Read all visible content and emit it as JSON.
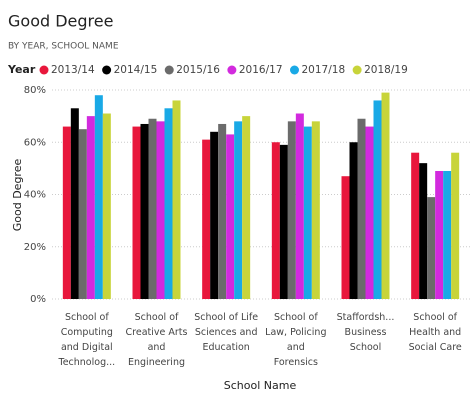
{
  "chart_data": {
    "type": "bar",
    "title": "Good Degree",
    "subtitle": "BY YEAR, SCHOOL NAME",
    "legend_title": "Year",
    "y_label": "Good Degree",
    "x_label": "School Name",
    "categories": [
      "School of Computing and Digital Technolog...",
      "School of Creative Arts and Engineering",
      "School of Life Sciences and Education",
      "School of Law, Policing and Forensics",
      "Staffordsh... Business School",
      "School of Health and Social Care"
    ],
    "series": [
      {
        "name": "2013/14",
        "color": "#e8173c",
        "values": [
          66,
          66,
          61,
          60,
          47,
          56
        ]
      },
      {
        "name": "2014/15",
        "color": "#000000",
        "values": [
          73,
          67,
          64,
          59,
          60,
          52
        ]
      },
      {
        "name": "2015/16",
        "color": "#6b6b6b",
        "values": [
          65,
          69,
          67,
          68,
          69,
          39
        ]
      },
      {
        "name": "2016/17",
        "color": "#d22ade",
        "values": [
          70,
          68,
          63,
          71,
          66,
          49
        ]
      },
      {
        "name": "2017/18",
        "color": "#19a9e6",
        "values": [
          78,
          73,
          68,
          66,
          76,
          49
        ]
      },
      {
        "name": "2018/19",
        "color": "#c8d43a",
        "values": [
          71,
          76,
          70,
          68,
          79,
          56
        ]
      }
    ],
    "ylim": [
      0,
      80
    ],
    "yticks": [
      {
        "value": 0,
        "label": "0%"
      },
      {
        "value": 20,
        "label": "20%"
      },
      {
        "value": 40,
        "label": "40%"
      },
      {
        "value": 60,
        "label": "60%"
      },
      {
        "value": 80,
        "label": "80%"
      }
    ],
    "grid": true
  }
}
